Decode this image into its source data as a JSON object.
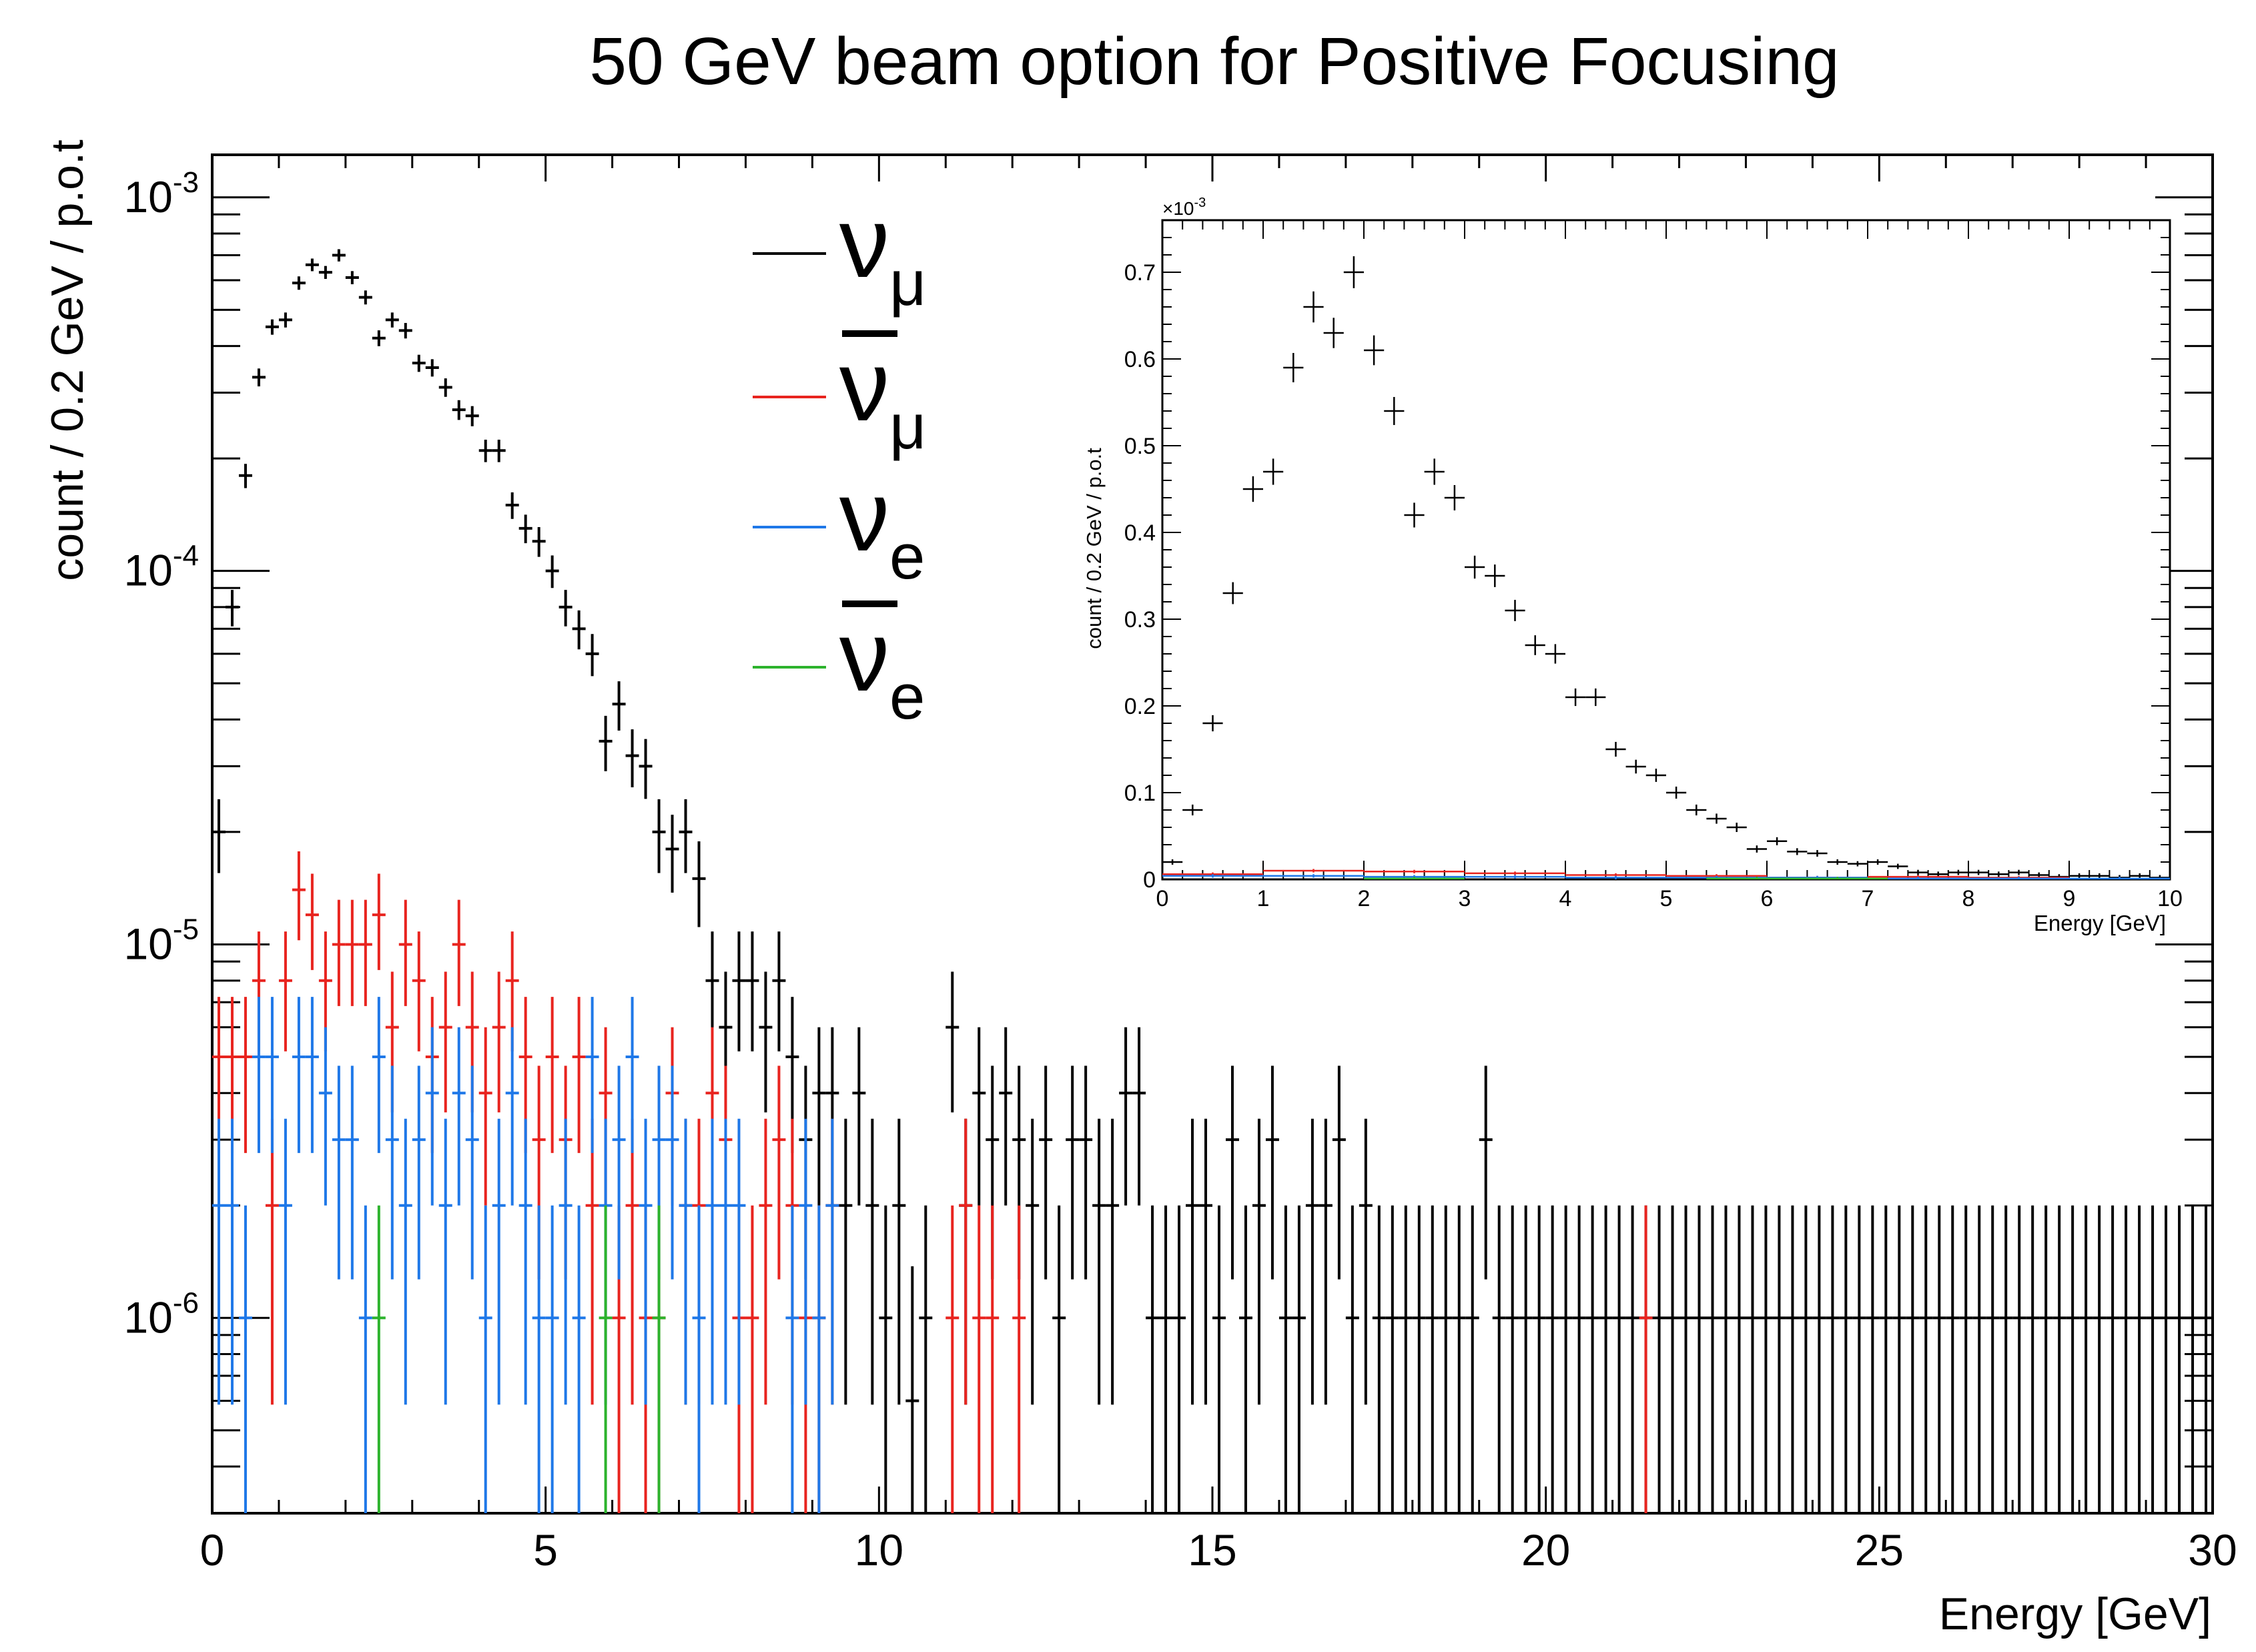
{
  "chart_data": [
    {
      "type": "scatter",
      "title": "50 GeV beam option for Positive Focusing",
      "xlabel": "Energy [GeV]",
      "ylabel": "count / 0.2 GeV / p.o.t",
      "xlim": [
        0,
        30
      ],
      "ylim": [
        3e-07,
        0.0013
      ],
      "yscale": "log",
      "bin_width": 0.2,
      "x_ticks": [
        "0",
        "5",
        "10",
        "15",
        "20",
        "25",
        "30"
      ],
      "y_ticks": [
        {
          "value": 1e-06,
          "base": "10",
          "exp": "-6"
        },
        {
          "value": 1e-05,
          "base": "10",
          "exp": "-5"
        },
        {
          "value": 0.0001,
          "base": "10",
          "exp": "-4"
        },
        {
          "value": 0.001,
          "base": "10",
          "exp": "-3"
        }
      ],
      "legend_position": "top-center",
      "series": [
        {
          "key": "numu",
          "name": "ν_μ",
          "symbol": "ν",
          "sub": "μ",
          "bar": false,
          "color": "#000000",
          "x": [
            0.1,
            0.3,
            0.5,
            0.7,
            0.9,
            1.1,
            1.3,
            1.5,
            1.7,
            1.9,
            2.1,
            2.3,
            2.5,
            2.7,
            2.9,
            3.1,
            3.3,
            3.5,
            3.7,
            3.9,
            4.1,
            4.3,
            4.5,
            4.7,
            4.9,
            5.1,
            5.3,
            5.5,
            5.7,
            5.9,
            6.1,
            6.3,
            6.5,
            6.7,
            6.9,
            7.1,
            7.3,
            7.5,
            7.7,
            7.9,
            8.1,
            8.3,
            8.5,
            8.7,
            8.9,
            9.1,
            9.3,
            9.5,
            9.7,
            9.9,
            10.1,
            10.3,
            10.5,
            10.7,
            10.9,
            11.1,
            11.3,
            11.5,
            11.7,
            11.9,
            12.1,
            12.3,
            12.5,
            12.7,
            12.9,
            13.1,
            13.3,
            13.5,
            13.7,
            13.9,
            14.1,
            14.3,
            14.5,
            14.7,
            14.9,
            15.1,
            15.3,
            15.5,
            15.7,
            15.9,
            16.1,
            16.3,
            16.5,
            16.7,
            16.9,
            17.1,
            17.3,
            17.5,
            17.7,
            17.9,
            18.1,
            18.3,
            18.5,
            18.7,
            18.9,
            19.1,
            19.3,
            19.5,
            19.7,
            19.9,
            20.1,
            20.3,
            20.5,
            20.7,
            20.9,
            21.1,
            21.3,
            21.5,
            21.7,
            21.9,
            22.1,
            22.3,
            22.5,
            22.7,
            22.9,
            23.1,
            23.3,
            23.5,
            23.7,
            23.9,
            24.1,
            24.3,
            24.5,
            24.7,
            24.9,
            25.1,
            25.3,
            25.5,
            25.7,
            25.9,
            26.1,
            26.3,
            26.5,
            26.7,
            26.9,
            27.1,
            27.3,
            27.5,
            27.7,
            27.9,
            28.1,
            28.3,
            28.5,
            28.7,
            28.9,
            29.1,
            29.3,
            29.5,
            29.7,
            29.9
          ],
          "y": [
            2e-05,
            8e-05,
            0.00018,
            0.00033,
            0.00045,
            0.00047,
            0.00059,
            0.00066,
            0.00063,
            0.0007,
            0.00061,
            0.00054,
            0.00042,
            0.00047,
            0.00044,
            0.00036,
            0.00035,
            0.00031,
            0.00027,
            0.00026,
            0.00021,
            0.00021,
            0.00015,
            0.00013,
            0.00012,
            0.0001,
            8e-05,
            7e-05,
            6e-05,
            3.5e-05,
            4.4e-05,
            3.2e-05,
            3e-05,
            2e-05,
            1.8e-05,
            2e-05,
            1.5e-05,
            8e-06,
            6e-06,
            8e-06,
            8e-06,
            6e-06,
            8e-06,
            5e-06,
            3e-06,
            4e-06,
            4e-06,
            2e-06,
            4e-06,
            2e-06,
            1e-06,
            2e-06,
            6e-07,
            1e-06,
            2e-07,
            6e-06,
            2e-06,
            4e-06,
            3e-06,
            4e-06,
            3e-06,
            2e-06,
            3e-06,
            1e-06,
            3e-06,
            3e-06,
            2e-06,
            2e-06,
            4e-06,
            4e-06,
            1e-06,
            1e-06,
            1e-06,
            2e-06,
            2e-06,
            1e-06,
            3e-06,
            1e-06,
            2e-06,
            3e-06,
            1e-06,
            1e-06,
            2e-06,
            2e-06,
            3e-06,
            1e-06,
            2e-06,
            1e-06,
            1e-06,
            1e-06,
            1e-06,
            1e-06,
            1e-06,
            1e-06,
            1e-06,
            3e-06,
            1e-06,
            1e-06,
            1e-06,
            1e-06,
            1e-06,
            1e-06,
            1e-06,
            1e-06,
            1e-06,
            1e-06,
            1e-06,
            1e-06,
            1e-06,
            1e-06,
            1e-06,
            1e-06,
            1e-06,
            1e-06,
            1e-06,
            1e-06,
            1e-06,
            1e-06,
            1e-06,
            1e-06,
            1e-06,
            1e-06,
            1e-06,
            1e-06,
            1e-06,
            1e-06,
            1e-06,
            1e-06,
            1e-06,
            1e-06,
            1e-06,
            1e-06,
            1e-06,
            1e-06,
            1e-06,
            1e-06,
            1e-06,
            1e-06,
            1e-06,
            1e-06,
            1e-06,
            1e-06,
            1e-06,
            1e-06,
            1e-06,
            1e-06,
            1e-06,
            1e-06,
            1e-06,
            1e-06
          ]
        },
        {
          "key": "numubar",
          "name": "ν̄_μ",
          "symbol": "ν",
          "sub": "μ",
          "bar": true,
          "color": "#e8241f",
          "points": [
            [
              0.1,
              5e-06
            ],
            [
              0.3,
              5e-06
            ],
            [
              0.5,
              5e-06
            ],
            [
              0.7,
              8e-06
            ],
            [
              0.9,
              2e-06
            ],
            [
              1.1,
              8e-06
            ],
            [
              1.3,
              1.4e-05
            ],
            [
              1.5,
              1.2e-05
            ],
            [
              1.7,
              8e-06
            ],
            [
              1.9,
              1e-05
            ],
            [
              2.1,
              1e-05
            ],
            [
              2.3,
              1e-05
            ],
            [
              2.5,
              1.2e-05
            ],
            [
              2.7,
              6e-06
            ],
            [
              2.9,
              1e-05
            ],
            [
              3.1,
              8e-06
            ],
            [
              3.3,
              5e-06
            ],
            [
              3.5,
              6e-06
            ],
            [
              3.7,
              1e-05
            ],
            [
              3.9,
              6e-06
            ],
            [
              4.1,
              4e-06
            ],
            [
              4.3,
              6e-06
            ],
            [
              4.5,
              8e-06
            ],
            [
              4.7,
              5e-06
            ],
            [
              4.9,
              3e-06
            ],
            [
              5.1,
              5e-06
            ],
            [
              5.3,
              3e-06
            ],
            [
              5.5,
              5e-06
            ],
            [
              5.7,
              2e-06
            ],
            [
              5.9,
              4e-06
            ],
            [
              6.1,
              1e-06
            ],
            [
              6.3,
              2e-06
            ],
            [
              6.5,
              1e-06
            ],
            [
              6.7,
              1e-06
            ],
            [
              6.9,
              4e-06
            ],
            [
              7.1,
              2e-06
            ],
            [
              7.3,
              2e-06
            ],
            [
              7.5,
              4e-06
            ],
            [
              7.7,
              3e-06
            ],
            [
              7.9,
              1e-06
            ],
            [
              8.1,
              1e-06
            ],
            [
              8.3,
              2e-06
            ],
            [
              8.5,
              3e-06
            ],
            [
              8.7,
              2e-06
            ],
            [
              8.9,
              1e-06
            ],
            [
              9.1,
              1e-06
            ],
            [
              9.3,
              2e-06
            ],
            [
              11.1,
              1e-06
            ],
            [
              11.3,
              2e-06
            ],
            [
              11.5,
              1e-06
            ],
            [
              11.7,
              1e-06
            ],
            [
              12.1,
              1e-06
            ],
            [
              21.5,
              1e-06
            ]
          ]
        },
        {
          "key": "nue",
          "name": "ν_e",
          "symbol": "ν",
          "sub": "e",
          "bar": false,
          "color": "#1f78e8",
          "points": [
            [
              0.1,
              2e-06
            ],
            [
              0.3,
              2e-06
            ],
            [
              0.5,
              1e-06
            ],
            [
              0.7,
              5e-06
            ],
            [
              0.9,
              5e-06
            ],
            [
              1.1,
              2e-06
            ],
            [
              1.3,
              5e-06
            ],
            [
              1.5,
              5e-06
            ],
            [
              1.7,
              4e-06
            ],
            [
              1.9,
              3e-06
            ],
            [
              2.1,
              3e-06
            ],
            [
              2.3,
              1e-06
            ],
            [
              2.5,
              5e-06
            ],
            [
              2.7,
              3e-06
            ],
            [
              2.9,
              2e-06
            ],
            [
              3.1,
              3e-06
            ],
            [
              3.3,
              4e-06
            ],
            [
              3.5,
              2e-06
            ],
            [
              3.7,
              4e-06
            ],
            [
              3.9,
              3e-06
            ],
            [
              4.1,
              1e-06
            ],
            [
              4.3,
              2e-06
            ],
            [
              4.5,
              4e-06
            ],
            [
              4.7,
              2e-06
            ],
            [
              4.9,
              1e-06
            ],
            [
              5.1,
              1e-06
            ],
            [
              5.3,
              2e-06
            ],
            [
              5.5,
              1e-06
            ],
            [
              5.7,
              5e-06
            ],
            [
              5.9,
              2e-06
            ],
            [
              6.1,
              3e-06
            ],
            [
              6.3,
              5e-06
            ],
            [
              6.5,
              2e-06
            ],
            [
              6.7,
              3e-06
            ],
            [
              6.9,
              3e-06
            ],
            [
              7.1,
              2e-06
            ],
            [
              7.3,
              1e-06
            ],
            [
              7.5,
              2e-06
            ],
            [
              7.7,
              2e-06
            ],
            [
              7.9,
              2e-06
            ],
            [
              8.7,
              1e-06
            ],
            [
              8.9,
              2e-06
            ],
            [
              9.1,
              1e-06
            ],
            [
              9.3,
              2e-06
            ]
          ]
        },
        {
          "key": "nuebar",
          "name": "ν̄_e",
          "symbol": "ν",
          "sub": "e",
          "bar": true,
          "color": "#2db32d",
          "points": [
            [
              2.5,
              1e-06
            ],
            [
              5.9,
              1e-06
            ],
            [
              6.7,
              1e-06
            ]
          ]
        }
      ]
    },
    {
      "type": "scatter",
      "xlabel": "Energy [GeV]",
      "ylabel": "count / 0.2 GeV / p.o.t",
      "y_multiplier": "×10",
      "y_multiplier_exp": "-3",
      "xlim": [
        0,
        10
      ],
      "ylim": [
        0,
        0.76
      ],
      "x_ticks": [
        "0",
        "1",
        "2",
        "3",
        "4",
        "5",
        "6",
        "7",
        "8",
        "9",
        "10"
      ],
      "y_ticks": [
        "0",
        "0.1",
        "0.2",
        "0.3",
        "0.4",
        "0.5",
        "0.6",
        "0.7"
      ],
      "series": [
        {
          "key": "numu",
          "color": "#000000",
          "x": [
            0.1,
            0.3,
            0.5,
            0.7,
            0.9,
            1.1,
            1.3,
            1.5,
            1.7,
            1.9,
            2.1,
            2.3,
            2.5,
            2.7,
            2.9,
            3.1,
            3.3,
            3.5,
            3.7,
            3.9,
            4.1,
            4.3,
            4.5,
            4.7,
            4.9,
            5.1,
            5.3,
            5.5,
            5.7,
            5.9,
            6.1,
            6.3,
            6.5,
            6.7,
            6.9,
            7.1,
            7.3,
            7.5,
            7.7,
            7.9,
            8.1,
            8.3,
            8.5,
            8.7,
            8.9,
            9.1,
            9.3,
            9.5,
            9.7,
            9.9
          ],
          "y": [
            0.02,
            0.08,
            0.18,
            0.33,
            0.45,
            0.47,
            0.59,
            0.66,
            0.63,
            0.7,
            0.61,
            0.54,
            0.42,
            0.47,
            0.44,
            0.36,
            0.35,
            0.31,
            0.27,
            0.26,
            0.21,
            0.21,
            0.15,
            0.13,
            0.12,
            0.1,
            0.08,
            0.07,
            0.06,
            0.035,
            0.044,
            0.032,
            0.03,
            0.02,
            0.018,
            0.02,
            0.015,
            0.008,
            0.006,
            0.008,
            0.008,
            0.006,
            0.008,
            0.005,
            0.003,
            0.004,
            0.004,
            0.002,
            0.004,
            0.002
          ]
        },
        {
          "key": "numubar",
          "color": "#e8241f",
          "x": [
            0.5,
            1.5,
            2.5,
            3.5,
            4.5,
            5.5,
            6.5,
            7.5,
            8.5,
            9.5
          ],
          "y": [
            0.006,
            0.01,
            0.009,
            0.007,
            0.005,
            0.004,
            0.002,
            0.003,
            0.002,
            0.001
          ]
        },
        {
          "key": "nue",
          "color": "#1f78e8",
          "x": [
            0.5,
            1.5,
            2.5,
            3.5,
            4.5,
            5.5,
            6.5,
            7.5,
            8.5,
            9.5
          ],
          "y": [
            0.004,
            0.004,
            0.003,
            0.003,
            0.002,
            0.002,
            0.002,
            0.001,
            0.001,
            0.001
          ]
        },
        {
          "key": "nuebar",
          "color": "#2db32d",
          "x": [
            2.5,
            5.9,
            6.7
          ],
          "y": [
            0.001,
            0.001,
            0.001
          ]
        }
      ]
    }
  ]
}
